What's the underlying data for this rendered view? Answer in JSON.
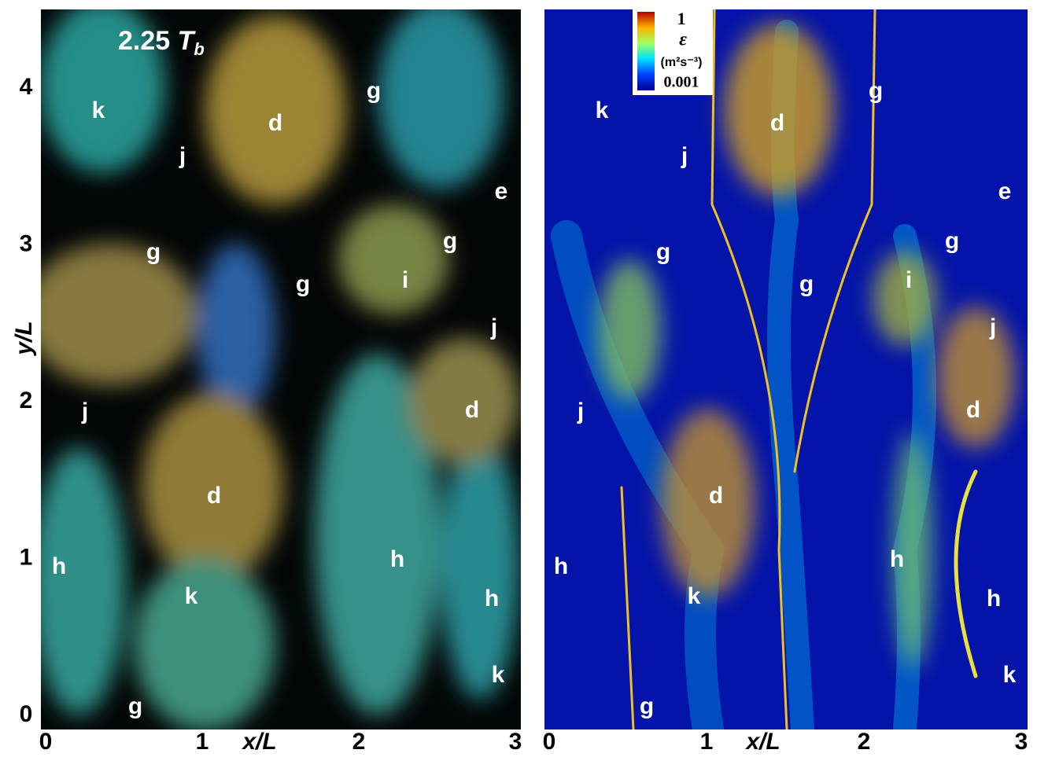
{
  "axes": {
    "x_label": "x/L",
    "y_label": "y/L",
    "x_ticks": [
      0,
      1,
      2,
      3
    ],
    "y_ticks": [
      0,
      1,
      2,
      3,
      4
    ]
  },
  "left_panel": {
    "time_label": {
      "value": "2.25",
      "symbol": "T",
      "subscript": "b"
    },
    "annotations": [
      "k",
      "d",
      "g",
      "j",
      "e",
      "g",
      "g",
      "g",
      "i",
      "j",
      "j",
      "d",
      "d",
      "h",
      "h",
      "k",
      "h",
      "k",
      "g"
    ]
  },
  "right_panel": {
    "colorbar": {
      "max": 1,
      "symbol": "ε",
      "units": "(m²s⁻³)",
      "min": 0.001
    },
    "annotations": [
      "k",
      "d",
      "g",
      "j",
      "e",
      "g",
      "g",
      "g",
      "i",
      "j",
      "j",
      "d",
      "d",
      "h",
      "h",
      "k",
      "h",
      "k",
      "g"
    ]
  }
}
